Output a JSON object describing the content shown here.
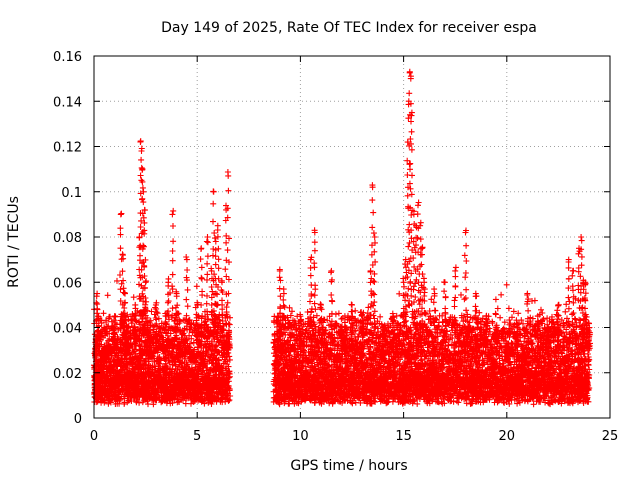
{
  "chart_data": {
    "type": "scatter",
    "title": "Day 149 of 2025, Rate Of TEC Index for receiver espa",
    "xlabel": "GPS time / hours",
    "ylabel": "ROTI / TECUs",
    "xlim": [
      0,
      25
    ],
    "ylim": [
      0,
      0.16
    ],
    "xticks": [
      0,
      5,
      10,
      15,
      20,
      25
    ],
    "yticks": [
      0,
      0.02,
      0.04,
      0.06,
      0.08,
      0.1,
      0.12,
      0.14,
      0.16
    ],
    "xtick_labels": [
      "0",
      "5",
      "10",
      "15",
      "20",
      "25"
    ],
    "ytick_labels": [
      "0",
      "0.02",
      "0.04",
      "0.06",
      "0.08",
      "0.1",
      "0.12",
      "0.14",
      "0.16"
    ],
    "grid": true,
    "marker": "+",
    "color": "#ff0000",
    "gap_hours": [
      6.6,
      8.7
    ],
    "series": [
      {
        "x": [
          0.05,
          0.1,
          0.15,
          0.2,
          0.3,
          0.5,
          0.8,
          1.0,
          1.3,
          1.4,
          1.5,
          1.6,
          2.0,
          2.2,
          2.25,
          2.3,
          2.35,
          2.4,
          2.45,
          2.5,
          2.6,
          3.0,
          3.5,
          3.6,
          3.8,
          4.0,
          4.5,
          5.0,
          5.2,
          5.5,
          5.7,
          5.8,
          5.9,
          6.0,
          6.2,
          6.4,
          6.5,
          8.9,
          9.0,
          9.2,
          9.5,
          10.0,
          10.5,
          10.7,
          11.0,
          11.5,
          12.0,
          12.5,
          13.0,
          13.4,
          13.5,
          13.6,
          14.0,
          14.5,
          15.0,
          15.1,
          15.2,
          15.25,
          15.3,
          15.35,
          15.4,
          15.5,
          15.6,
          15.7,
          15.8,
          15.9,
          16.0,
          16.5,
          17.0,
          17.5,
          18.0,
          18.5,
          19.0,
          19.5,
          20.0,
          20.5,
          21.0,
          21.5,
          22.0,
          22.5,
          23.0,
          23.2,
          23.5,
          23.6,
          23.7,
          23.8,
          24.0
        ],
        "y": [
          0.015,
          0.035,
          0.055,
          0.045,
          0.02,
          0.025,
          0.03,
          0.045,
          0.09,
          0.072,
          0.055,
          0.04,
          0.05,
          0.08,
          0.122,
          0.118,
          0.11,
          0.1,
          0.092,
          0.06,
          0.04,
          0.05,
          0.045,
          0.06,
          0.09,
          0.055,
          0.07,
          0.05,
          0.075,
          0.08,
          0.065,
          0.1,
          0.078,
          0.085,
          0.06,
          0.092,
          0.107,
          0.045,
          0.065,
          0.055,
          0.04,
          0.045,
          0.07,
          0.082,
          0.05,
          0.065,
          0.04,
          0.05,
          0.045,
          0.065,
          0.102,
          0.08,
          0.04,
          0.045,
          0.06,
          0.07,
          0.122,
          0.14,
          0.153,
          0.15,
          0.135,
          0.09,
          0.085,
          0.094,
          0.085,
          0.075,
          0.06,
          0.055,
          0.06,
          0.065,
          0.082,
          0.055,
          0.045,
          0.04,
          0.03,
          0.04,
          0.055,
          0.045,
          0.04,
          0.05,
          0.07,
          0.065,
          0.075,
          0.08,
          0.06,
          0.06,
          0.04
        ]
      }
    ]
  }
}
